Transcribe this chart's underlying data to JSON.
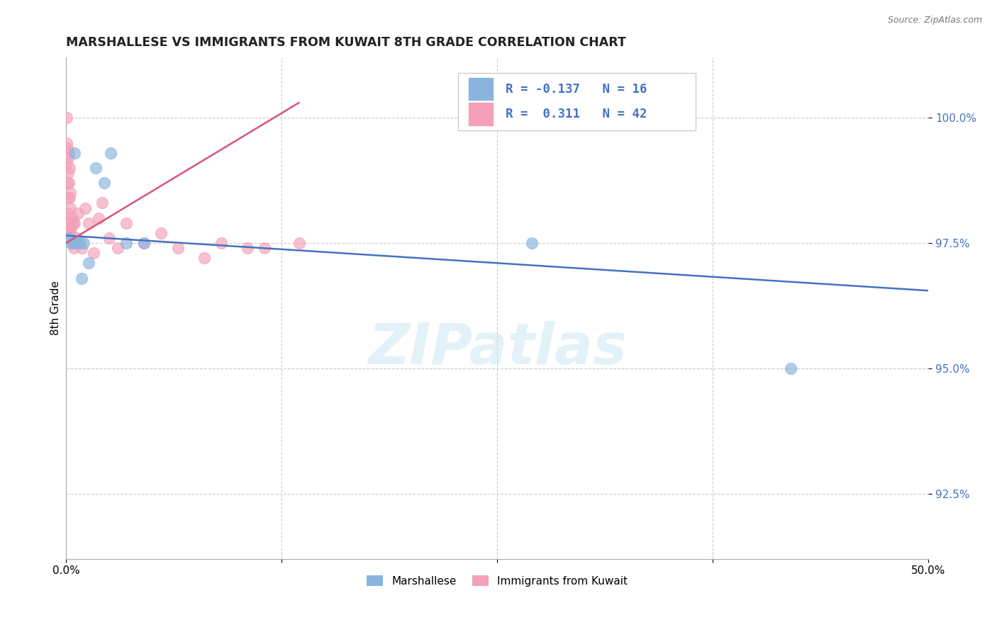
{
  "title": "MARSHALLESE VS IMMIGRANTS FROM KUWAIT 8TH GRADE CORRELATION CHART",
  "source_text": "Source: ZipAtlas.com",
  "xlabel": "",
  "ylabel": "8th Grade",
  "xlim": [
    0.0,
    50.0
  ],
  "ylim": [
    91.2,
    101.2
  ],
  "xticks": [
    0.0,
    12.5,
    25.0,
    37.5,
    50.0
  ],
  "xtick_labels": [
    "0.0%",
    "",
    "",
    "",
    "50.0%"
  ],
  "yticks": [
    92.5,
    95.0,
    97.5,
    100.0
  ],
  "ytick_labels": [
    "92.5%",
    "95.0%",
    "97.5%",
    "100.0%"
  ],
  "blue_color": "#88b4de",
  "pink_color": "#f4a0b8",
  "blue_line_color": "#4472c4",
  "pink_line_color": "#d9547a",
  "legend_R_blue": "-0.137",
  "legend_N_blue": "16",
  "legend_R_pink": "0.311",
  "legend_N_pink": "42",
  "legend_label_blue": "Marshallese",
  "legend_label_pink": "Immigrants from Kuwait",
  "watermark": "ZIPatlas",
  "blue_scatter_x": [
    0.15,
    0.5,
    1.7,
    2.2,
    2.6,
    0.3,
    0.4,
    0.6,
    0.8,
    1.0,
    3.5,
    4.5,
    0.9,
    1.3,
    27.0,
    42.0
  ],
  "blue_scatter_y": [
    97.6,
    99.3,
    99.0,
    98.7,
    99.3,
    97.5,
    97.5,
    97.5,
    97.5,
    97.5,
    97.5,
    97.5,
    96.8,
    97.1,
    97.5,
    95.0
  ],
  "pink_scatter_x": [
    0.05,
    0.05,
    0.05,
    0.08,
    0.08,
    0.1,
    0.1,
    0.12,
    0.12,
    0.15,
    0.15,
    0.18,
    0.18,
    0.2,
    0.2,
    0.22,
    0.25,
    0.25,
    0.3,
    0.35,
    0.4,
    0.45,
    0.5,
    0.6,
    0.7,
    0.9,
    1.1,
    1.3,
    1.6,
    1.9,
    2.1,
    2.5,
    3.0,
    3.5,
    4.5,
    5.5,
    6.5,
    8.0,
    9.0,
    10.5,
    11.5,
    13.5
  ],
  "pink_scatter_y": [
    100.0,
    99.5,
    99.1,
    99.4,
    98.7,
    99.2,
    98.4,
    98.9,
    98.1,
    98.7,
    99.3,
    98.4,
    97.9,
    97.8,
    99.0,
    98.2,
    97.7,
    98.5,
    97.8,
    98.0,
    97.9,
    97.4,
    97.9,
    97.6,
    98.1,
    97.4,
    98.2,
    97.9,
    97.3,
    98.0,
    98.3,
    97.6,
    97.4,
    97.9,
    97.5,
    97.7,
    97.4,
    97.2,
    97.5,
    97.4,
    97.4,
    97.5
  ],
  "blue_trend_x": [
    0.0,
    50.0
  ],
  "blue_trend_y": [
    97.65,
    96.55
  ],
  "pink_trend_x": [
    0.0,
    13.5
  ],
  "pink_trend_y": [
    97.5,
    100.3
  ],
  "background_color": "#ffffff",
  "grid_color": "#cccccc"
}
